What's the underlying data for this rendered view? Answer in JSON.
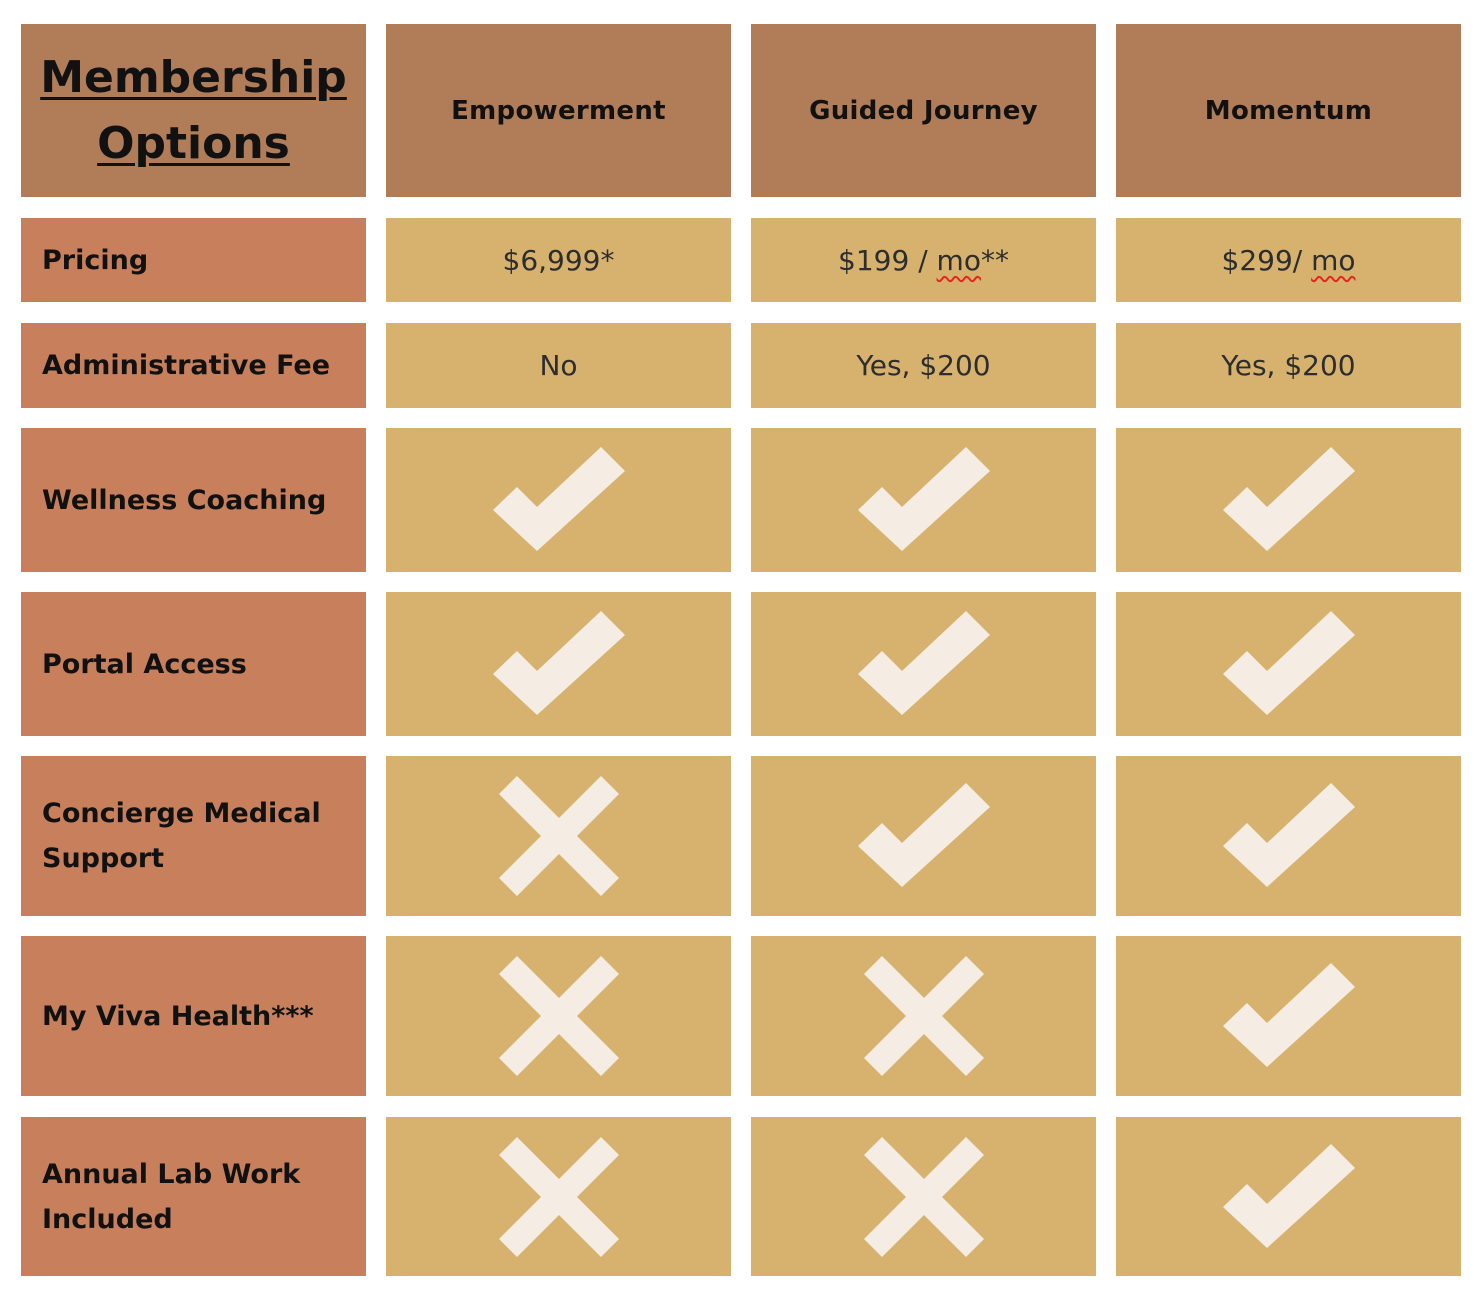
{
  "table": {
    "corner_title": [
      "Membership",
      "Options"
    ],
    "columns": [
      "Empowerment",
      "Guided Journey",
      "Momentum"
    ],
    "colors": {
      "header_bg": "#B07D58",
      "label_bg": "#C8805C",
      "value_bg": "#D6B26E",
      "icon": "#F5EDE4"
    },
    "rows": [
      {
        "label": "Pricing",
        "values": [
          {
            "type": "text",
            "text": "$6,999*"
          },
          {
            "type": "price",
            "amount": "$199 / ",
            "unit": "mo",
            "suffix": "**"
          },
          {
            "type": "price",
            "amount": "$299/ ",
            "unit": "mo",
            "suffix": ""
          }
        ]
      },
      {
        "label": "Administrative Fee",
        "values": [
          {
            "type": "text",
            "text": "No"
          },
          {
            "type": "text",
            "text": "Yes, $200"
          },
          {
            "type": "text",
            "text": "Yes, $200"
          }
        ]
      },
      {
        "label": "Wellness Coaching",
        "values": [
          {
            "type": "check"
          },
          {
            "type": "check"
          },
          {
            "type": "check"
          }
        ]
      },
      {
        "label": "Portal Access",
        "values": [
          {
            "type": "check"
          },
          {
            "type": "check"
          },
          {
            "type": "check"
          }
        ]
      },
      {
        "label": "Concierge Medical Support",
        "values": [
          {
            "type": "cross"
          },
          {
            "type": "check"
          },
          {
            "type": "check"
          }
        ]
      },
      {
        "label": "My Viva Health***",
        "values": [
          {
            "type": "cross"
          },
          {
            "type": "cross"
          },
          {
            "type": "check"
          }
        ]
      },
      {
        "label": "Annual Lab Work Included",
        "values": [
          {
            "type": "cross"
          },
          {
            "type": "cross"
          },
          {
            "type": "check"
          }
        ]
      }
    ]
  }
}
